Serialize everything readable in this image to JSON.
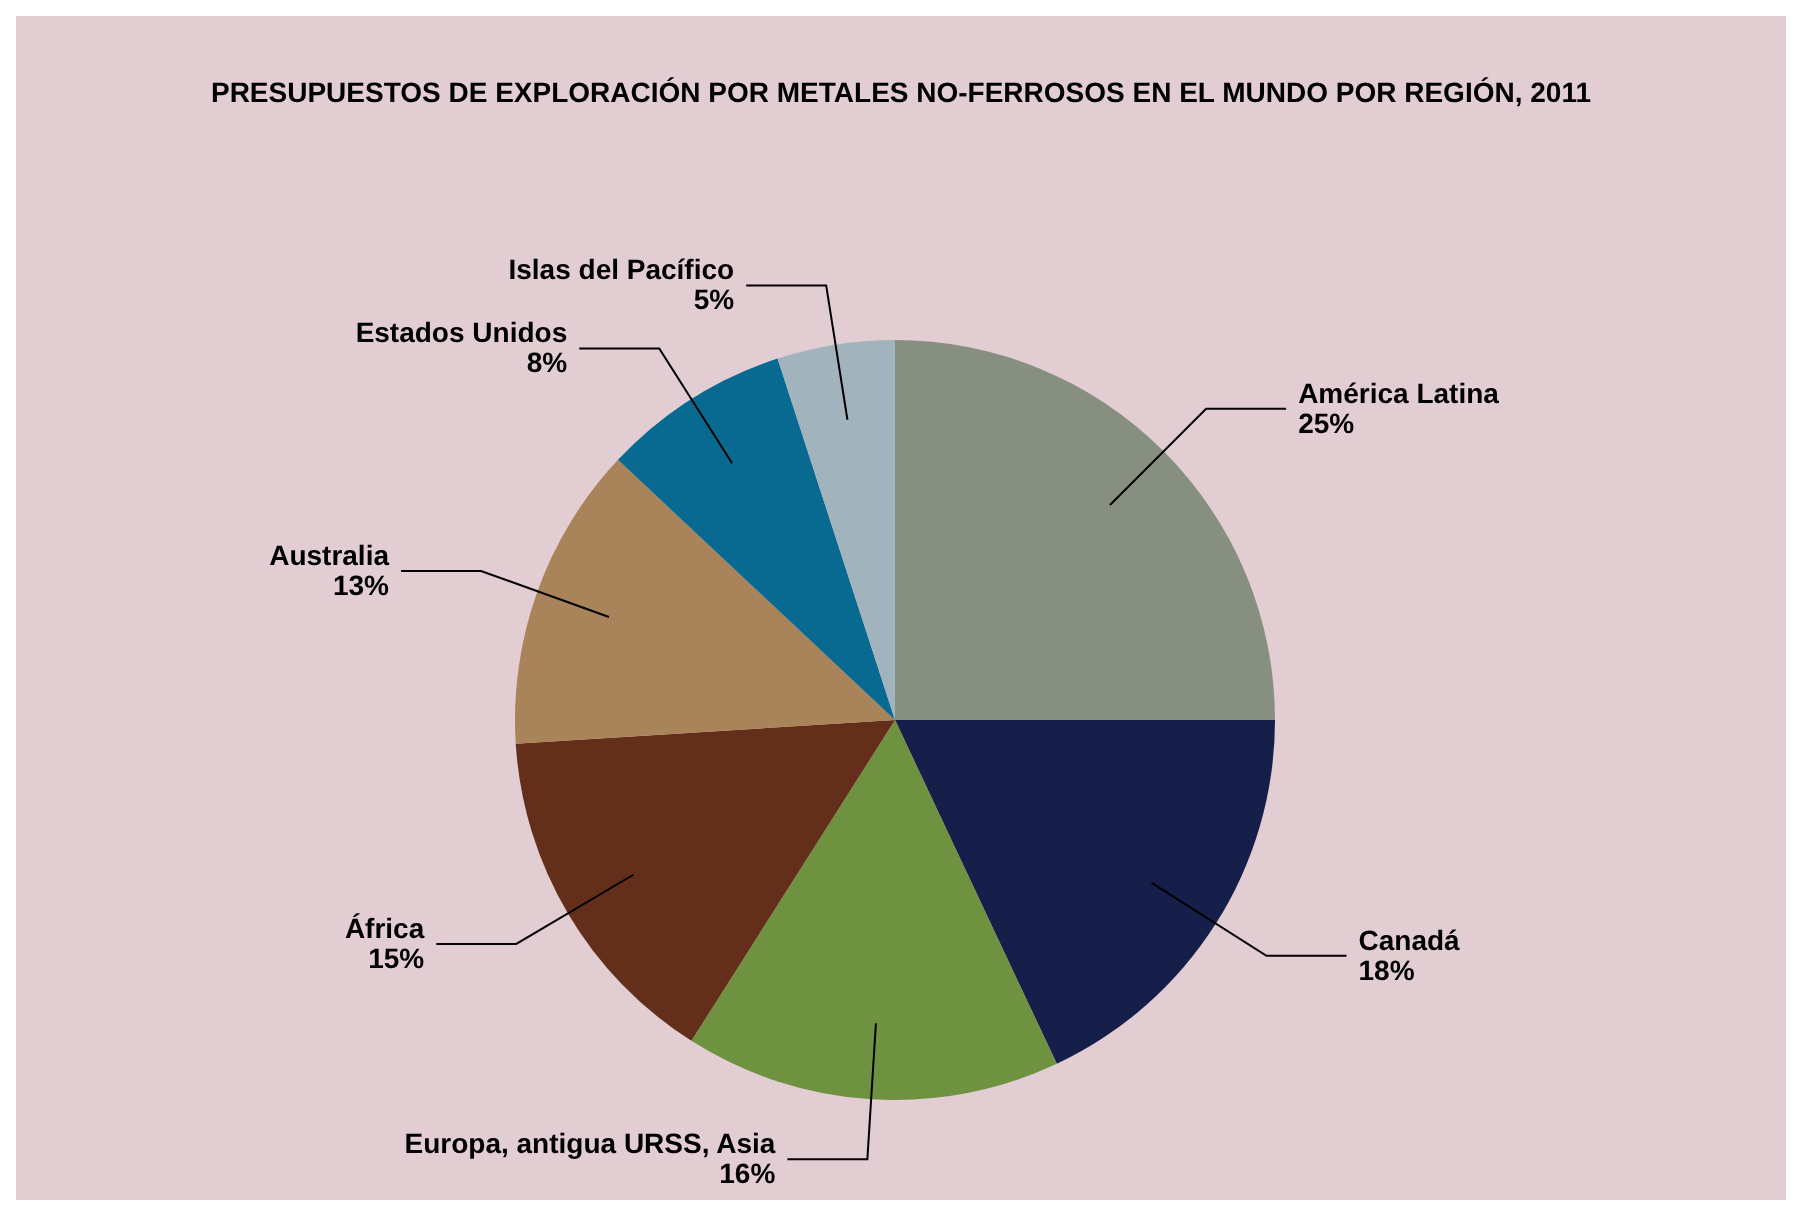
{
  "chart_data": {
    "type": "pie",
    "title": "PRESUPUESTOS DE EXPLORACIÓN POR METALES NO-FERROSOS EN EL MUNDO POR REGIÓN, 2011",
    "categories": [
      "América Latina",
      "Canadá",
      "Europa, antigua URSS, Asia",
      "África",
      "Australia",
      "Estados Unidos",
      "Islas del Pacífico"
    ],
    "values": [
      25,
      18,
      16,
      15,
      13,
      8,
      5
    ],
    "value_labels": [
      "25%",
      "18%",
      "16%",
      "15%",
      "13%",
      "8%",
      "5%"
    ],
    "colors": [
      "#879080",
      "#161e4a",
      "#6e9240",
      "#642f1a",
      "#a9845a",
      "#086a90",
      "#a1b3bd"
    ],
    "legend": false
  }
}
